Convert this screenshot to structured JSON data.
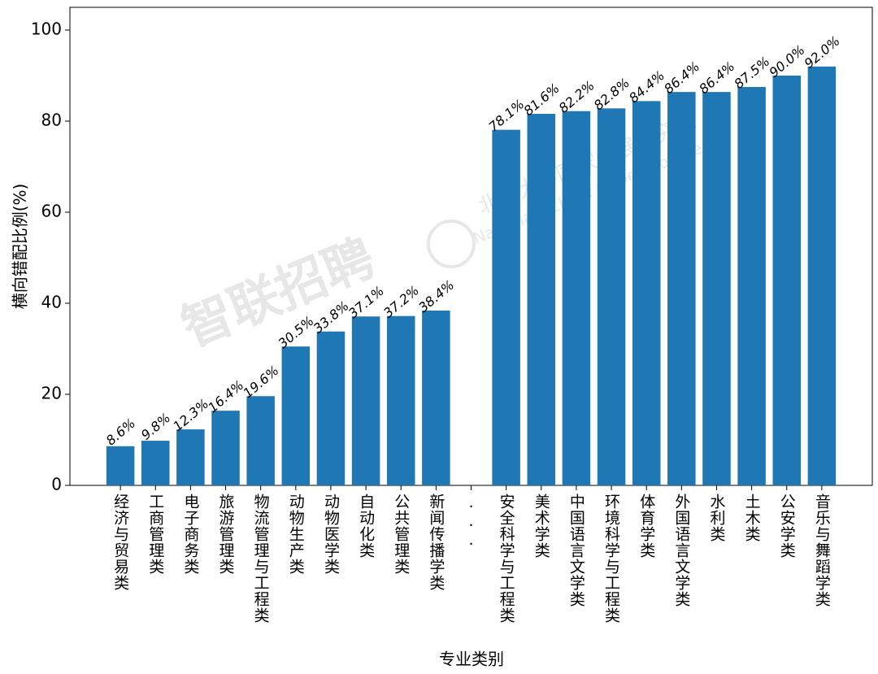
{
  "chart_data": {
    "type": "bar",
    "x_label": "专业类别",
    "y_label": "横向错配比例(%)",
    "categories": [
      "经济与贸易类",
      "工商管理类",
      "电子商务类",
      "旅游管理类",
      "物流管理与工程类",
      "动物生产类",
      "动物医学类",
      "自动化类",
      "公共管理类",
      "新闻传播学类",
      "...",
      "安全科学与工程类",
      "美术学类",
      "中国语言文学类",
      "环境科学与工程类",
      "体育学类",
      "外国语言文学类",
      "水利类",
      "土木类",
      "公安学类",
      "音乐与舞蹈学类"
    ],
    "values": [
      8.6,
      9.8,
      12.3,
      16.4,
      19.6,
      30.5,
      33.8,
      37.1,
      37.2,
      38.4,
      null,
      78.1,
      81.6,
      82.2,
      82.8,
      84.4,
      86.4,
      86.4,
      87.5,
      90.0,
      92.0
    ],
    "value_labels": [
      "8.6%",
      "9.8%",
      "12.3%",
      "16.4%",
      "19.6%",
      "30.5%",
      "33.8%",
      "37.1%",
      "37.2%",
      "38.4%",
      null,
      "78.1%",
      "81.6%",
      "82.2%",
      "82.8%",
      "84.4%",
      "86.4%",
      "86.4%",
      "87.5%",
      "90.0%",
      "92.0%"
    ],
    "color": "#1f77b4",
    "ylim": [
      0,
      105
    ],
    "yticks": [
      0,
      20,
      40,
      60,
      80,
      100
    ],
    "watermarks": [
      "智联招聘",
      "北京大学国家发展研究院",
      "National School of Development"
    ]
  }
}
